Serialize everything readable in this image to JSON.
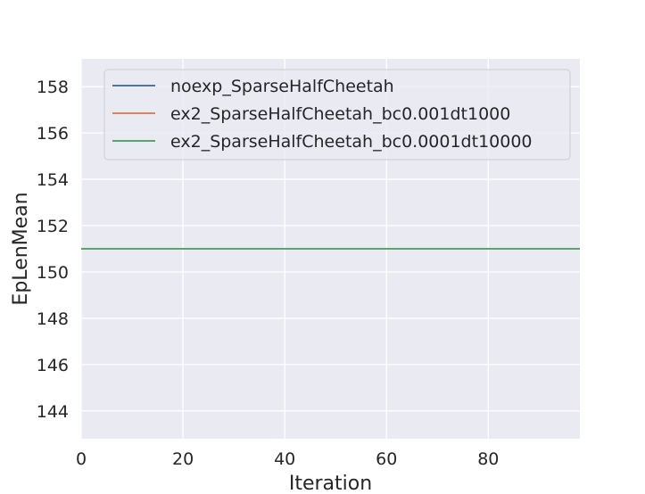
{
  "chart_data": {
    "type": "line",
    "title": "",
    "xlabel": "Iteration",
    "ylabel": "EpLenMean",
    "xlim": [
      0,
      98
    ],
    "ylim": [
      142.8,
      159.2
    ],
    "xticks": [
      0,
      20,
      40,
      60,
      80
    ],
    "yticks": [
      144,
      146,
      148,
      150,
      152,
      154,
      156,
      158
    ],
    "grid": true,
    "legend_position": "top-right",
    "series": [
      {
        "name": "noexp_SparseHalfCheetah",
        "color": "#4c72b0",
        "x": [
          0,
          98
        ],
        "y": [
          151,
          151
        ]
      },
      {
        "name": "ex2_SparseHalfCheetah_bc0.001dt1000",
        "color": "#dd8452",
        "x": [
          0,
          98
        ],
        "y": [
          151,
          151
        ]
      },
      {
        "name": "ex2_SparseHalfCheetah_bc0.0001dt10000",
        "color": "#55a868",
        "x": [
          0,
          98
        ],
        "y": [
          151,
          151
        ]
      }
    ]
  },
  "colors": {
    "plot_background": "#eaeaf2",
    "grid": "#ffffff",
    "text": "#262626"
  }
}
